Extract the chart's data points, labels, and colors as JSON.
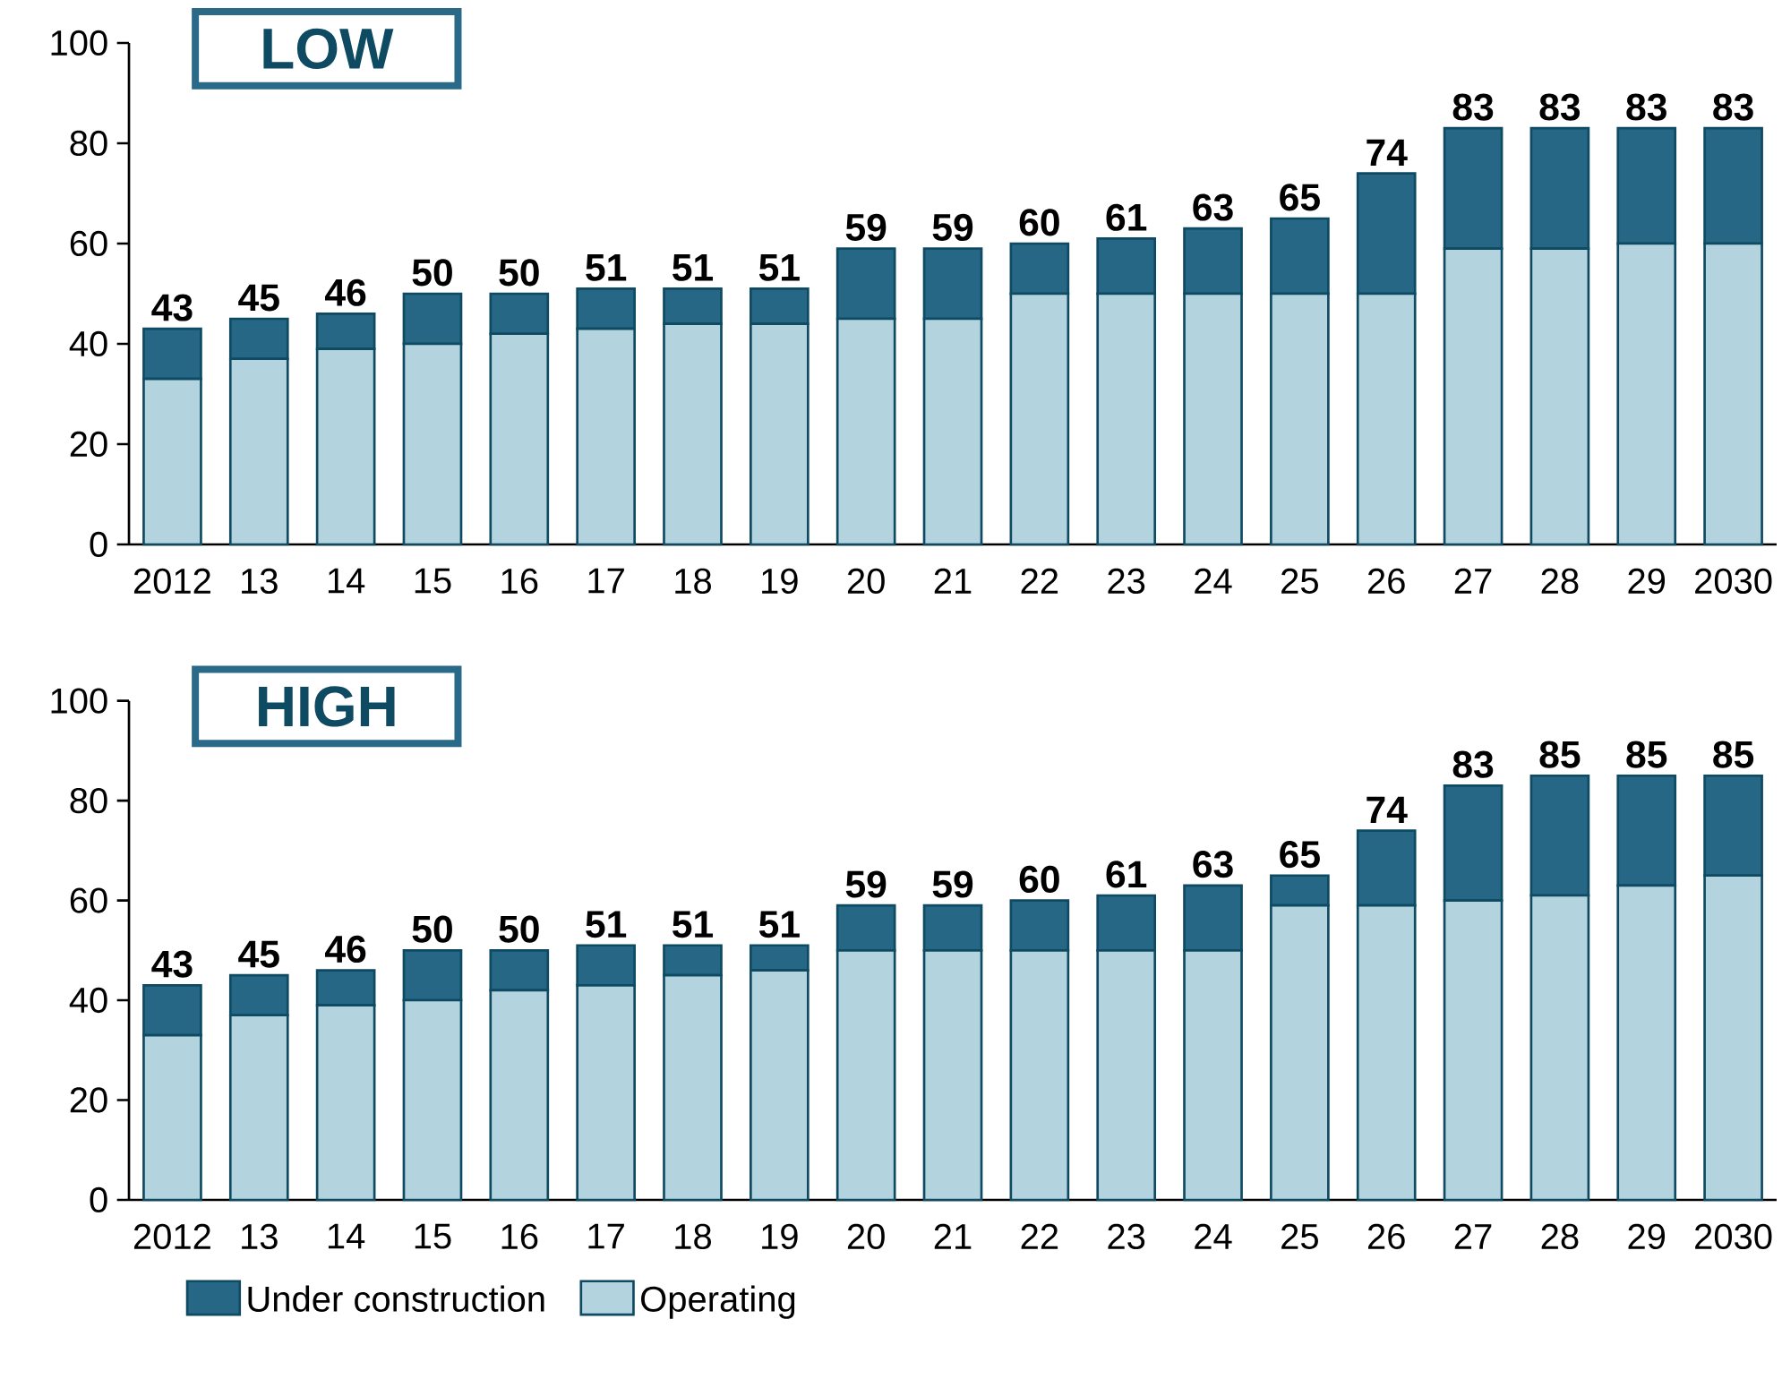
{
  "chart_data": [
    {
      "type": "bar",
      "title": "LOW",
      "stacked": true,
      "categories": [
        "2012",
        "13",
        "14",
        "15",
        "16",
        "17",
        "18",
        "19",
        "20",
        "21",
        "22",
        "23",
        "24",
        "25",
        "26",
        "27",
        "28",
        "29",
        "2030"
      ],
      "series": [
        {
          "color": "#b3d4de",
          "values": [
            33,
            37,
            39,
            40,
            42,
            43,
            44,
            44,
            45,
            45,
            50,
            50,
            50,
            50,
            50,
            59,
            59,
            60,
            60
          ]
        },
        {
          "color": "#256784",
          "values": [
            10,
            8,
            7,
            10,
            8,
            8,
            7,
            7,
            14,
            14,
            10,
            11,
            13,
            15,
            24,
            24,
            24,
            23,
            23
          ]
        }
      ],
      "totals": [
        "43",
        "45",
        "46",
        "50",
        "50",
        "51",
        "51",
        "51",
        "59",
        "59",
        "60",
        "61",
        "63",
        "65",
        "74",
        "83",
        "83",
        "83",
        "83"
      ],
      "ylim": [
        0,
        100
      ],
      "yticks": [
        0,
        20,
        40,
        60,
        80,
        100
      ]
    },
    {
      "type": "bar",
      "title": "HIGH",
      "stacked": true,
      "legend": "bottom",
      "categories": [
        "2012",
        "13",
        "14",
        "15",
        "16",
        "17",
        "18",
        "19",
        "20",
        "21",
        "22",
        "23",
        "24",
        "25",
        "26",
        "27",
        "28",
        "29",
        "2030"
      ],
      "series": [
        {
          "name": "Operating",
          "color": "#b3d4de",
          "values": [
            33,
            37,
            39,
            40,
            42,
            43,
            45,
            46,
            50,
            50,
            50,
            50,
            50,
            59,
            59,
            60,
            61,
            63,
            65
          ]
        },
        {
          "name": "Under construction",
          "color": "#256784",
          "values": [
            10,
            8,
            7,
            10,
            8,
            8,
            6,
            5,
            9,
            9,
            10,
            11,
            13,
            6,
            15,
            23,
            24,
            22,
            20
          ]
        }
      ],
      "totals": [
        "43",
        "45",
        "46",
        "50",
        "50",
        "51",
        "51",
        "51",
        "59",
        "59",
        "60",
        "61",
        "63",
        "65",
        "74",
        "83",
        "85",
        "85",
        "85"
      ],
      "ylim": [
        0,
        100
      ],
      "yticks": [
        0,
        20,
        40,
        60,
        80,
        100
      ]
    }
  ]
}
